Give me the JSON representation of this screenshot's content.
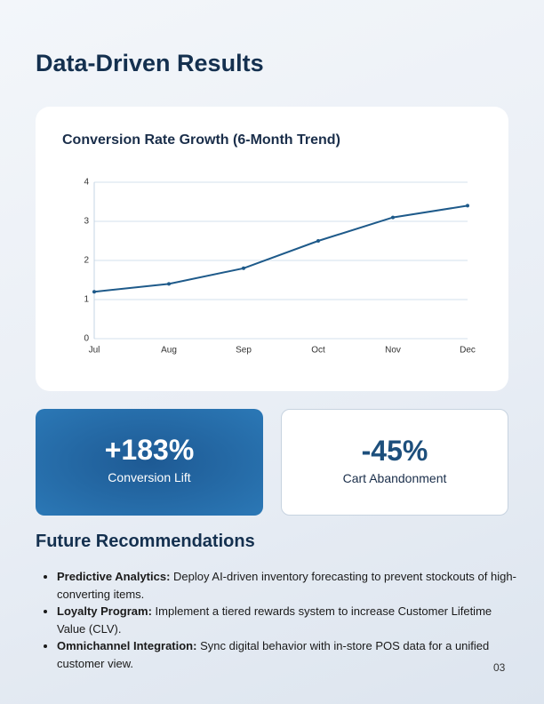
{
  "title": "Data-Driven Results",
  "chart_data": {
    "type": "line",
    "title": "Conversion Rate Growth (6-Month Trend)",
    "categories": [
      "Jul",
      "Aug",
      "Sep",
      "Oct",
      "Nov",
      "Dec"
    ],
    "values": [
      1.2,
      1.4,
      1.8,
      2.5,
      3.1,
      3.4
    ],
    "color": "#1e5a8a",
    "ylim": [
      0,
      4
    ],
    "yticks": [
      0,
      1,
      2,
      3,
      4
    ],
    "grid": true
  },
  "stats": [
    {
      "value": "+183%",
      "label": "Conversion Lift"
    },
    {
      "value": "-45%",
      "label": "Cart Abandonment"
    }
  ],
  "section_title": "Future Recommendations",
  "recommendations": [
    {
      "label": "Predictive Analytics:",
      "text": "Deploy AI-driven inventory forecasting to prevent stockouts of high-converting items."
    },
    {
      "label": "Loyalty Program:",
      "text": "Implement a tiered rewards system to increase Customer Lifetime Value (CLV)."
    },
    {
      "label": "Omnichannel Integration:",
      "text": "Sync digital behavior with in-store POS data for a unified customer view."
    }
  ],
  "page_number": "03"
}
